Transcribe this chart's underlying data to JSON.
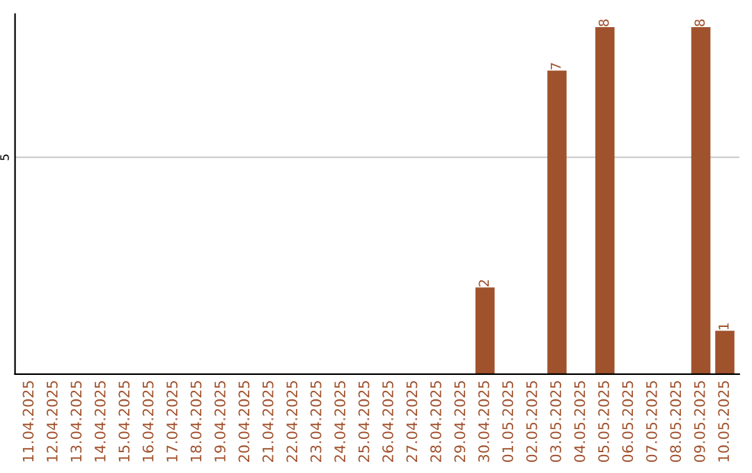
{
  "chart_data": {
    "type": "bar",
    "categories": [
      "11.04.2025",
      "12.04.2025",
      "13.04.2025",
      "14.04.2025",
      "15.04.2025",
      "16.04.2025",
      "17.04.2025",
      "18.04.2025",
      "19.04.2025",
      "20.04.2025",
      "21.04.2025",
      "22.04.2025",
      "23.04.2025",
      "24.04.2025",
      "25.04.2025",
      "26.04.2025",
      "27.04.2025",
      "28.04.2025",
      "29.04.2025",
      "30.04.2025",
      "01.05.2025",
      "02.05.2025",
      "03.05.2025",
      "04.05.2025",
      "05.05.2025",
      "06.05.2025",
      "07.05.2025",
      "08.05.2025",
      "09.05.2025",
      "10.05.2025"
    ],
    "values": [
      null,
      null,
      null,
      null,
      null,
      null,
      null,
      null,
      null,
      null,
      null,
      null,
      null,
      null,
      null,
      null,
      null,
      null,
      null,
      2,
      null,
      null,
      7,
      null,
      8,
      null,
      null,
      null,
      8,
      1
    ],
    "color": "#a0522d",
    "ylim": [
      0,
      8.3
    ],
    "yticks": [
      5
    ],
    "grid": "y",
    "data_labels": true
  }
}
